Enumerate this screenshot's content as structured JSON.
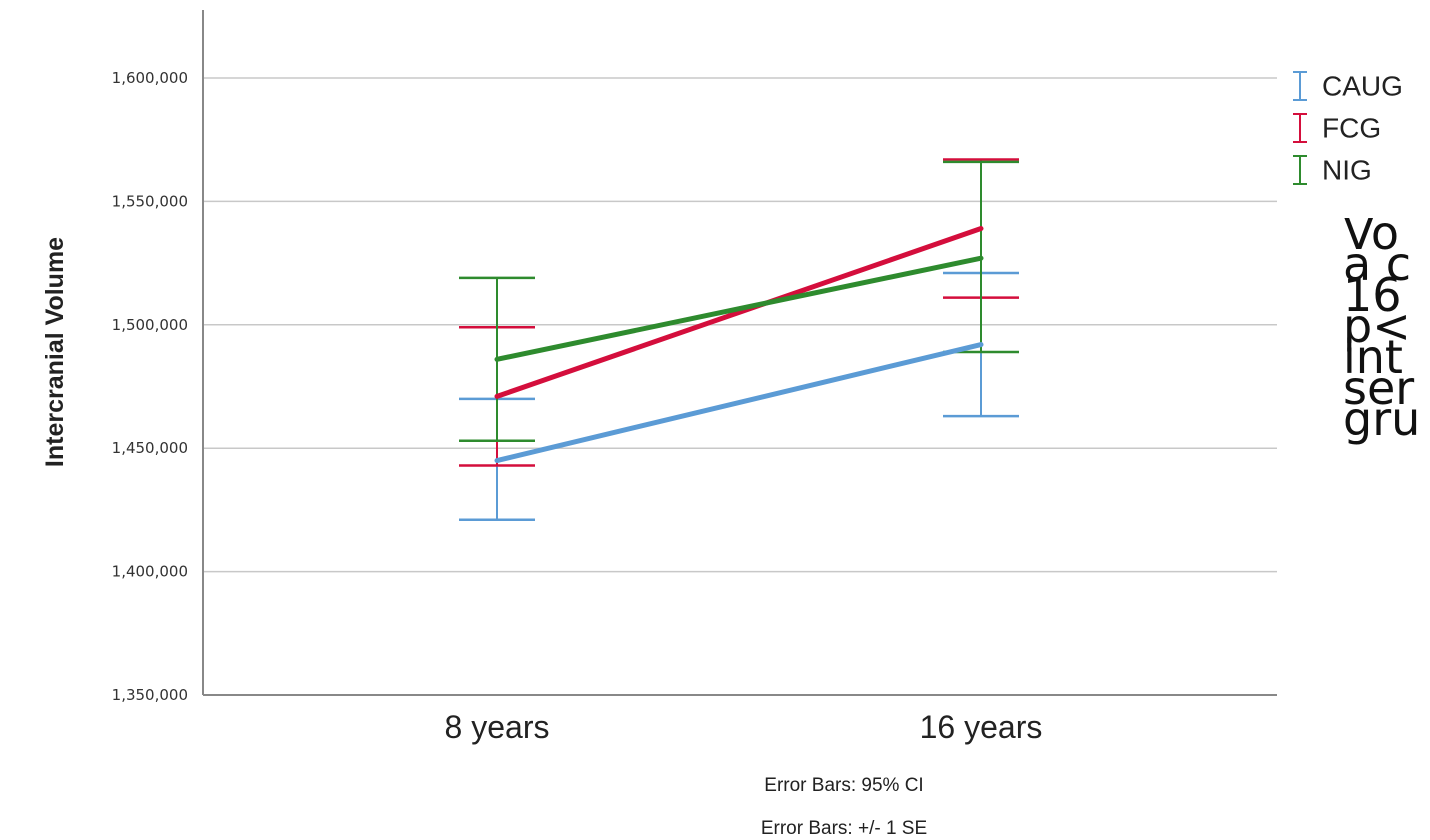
{
  "chart_data": {
    "type": "line",
    "ylabel": "Intercranial Volume",
    "xlabel": "",
    "categories": [
      "8 years",
      "16 years"
    ],
    "ylim": [
      1350000,
      1625000
    ],
    "yticks": [
      1350000,
      1400000,
      1450000,
      1500000,
      1550000,
      1600000
    ],
    "ytick_labels": [
      "1,350,000",
      "1,400,000",
      "1,450,000",
      "1,500,000",
      "1,550,000",
      "1,600,000"
    ],
    "grid": true,
    "legend_position": "top-right",
    "series": [
      {
        "name": "CAUG",
        "color": "#5b9bd5",
        "values": [
          1445000,
          1492000
        ],
        "err_low": [
          1421000,
          1463000
        ],
        "err_high": [
          1470000,
          1521000
        ]
      },
      {
        "name": "FCG",
        "color": "#d40e3c",
        "values": [
          1471000,
          1539000
        ],
        "err_low": [
          1443000,
          1511000
        ],
        "err_high": [
          1499000,
          1567000
        ]
      },
      {
        "name": "NIG",
        "color": "#2e8b2e",
        "values": [
          1486000,
          1527000
        ],
        "err_low": [
          1453000,
          1489000
        ],
        "err_high": [
          1519000,
          1566000
        ]
      }
    ],
    "footnotes": [
      "Error Bars: 95% CI",
      "Error Bars: +/- 1 SE"
    ]
  },
  "side_text": "Vo\na c\n16 \np<\nint\nser\ngru"
}
